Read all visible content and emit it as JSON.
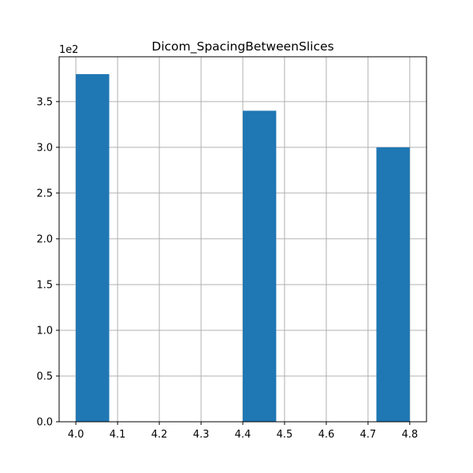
{
  "chart_data": {
    "type": "bar",
    "title": "Dicom_SpacingBetweenSlices",
    "xlabel": "",
    "ylabel": "",
    "y_offset_label": "1e2",
    "bins": [
      {
        "x0": 4.0,
        "x1": 4.08,
        "value": 380
      },
      {
        "x0": 4.08,
        "x1": 4.16,
        "value": 0
      },
      {
        "x0": 4.16,
        "x1": 4.24,
        "value": 0
      },
      {
        "x0": 4.24,
        "x1": 4.32,
        "value": 0
      },
      {
        "x0": 4.32,
        "x1": 4.4,
        "value": 0
      },
      {
        "x0": 4.4,
        "x1": 4.48,
        "value": 340
      },
      {
        "x0": 4.48,
        "x1": 4.56,
        "value": 0
      },
      {
        "x0": 4.56,
        "x1": 4.64,
        "value": 0
      },
      {
        "x0": 4.64,
        "x1": 4.72,
        "value": 0
      },
      {
        "x0": 4.72,
        "x1": 4.8,
        "value": 300
      }
    ],
    "xlim": [
      3.96,
      4.84
    ],
    "ylim": [
      0,
      399
    ],
    "xticks": [
      4.0,
      4.1,
      4.2,
      4.3,
      4.4,
      4.5,
      4.6,
      4.7,
      4.8
    ],
    "xtick_labels": [
      "4.0",
      "4.1",
      "4.2",
      "4.3",
      "4.4",
      "4.5",
      "4.6",
      "4.7",
      "4.8"
    ],
    "yticks": [
      0,
      50,
      100,
      150,
      200,
      250,
      300,
      350
    ],
    "ytick_labels": [
      "0.0",
      "0.5",
      "1.0",
      "1.5",
      "2.0",
      "2.5",
      "3.0",
      "3.5"
    ],
    "grid": true,
    "bar_color": "#1f77b4",
    "grid_color": "#b0b0b0"
  }
}
